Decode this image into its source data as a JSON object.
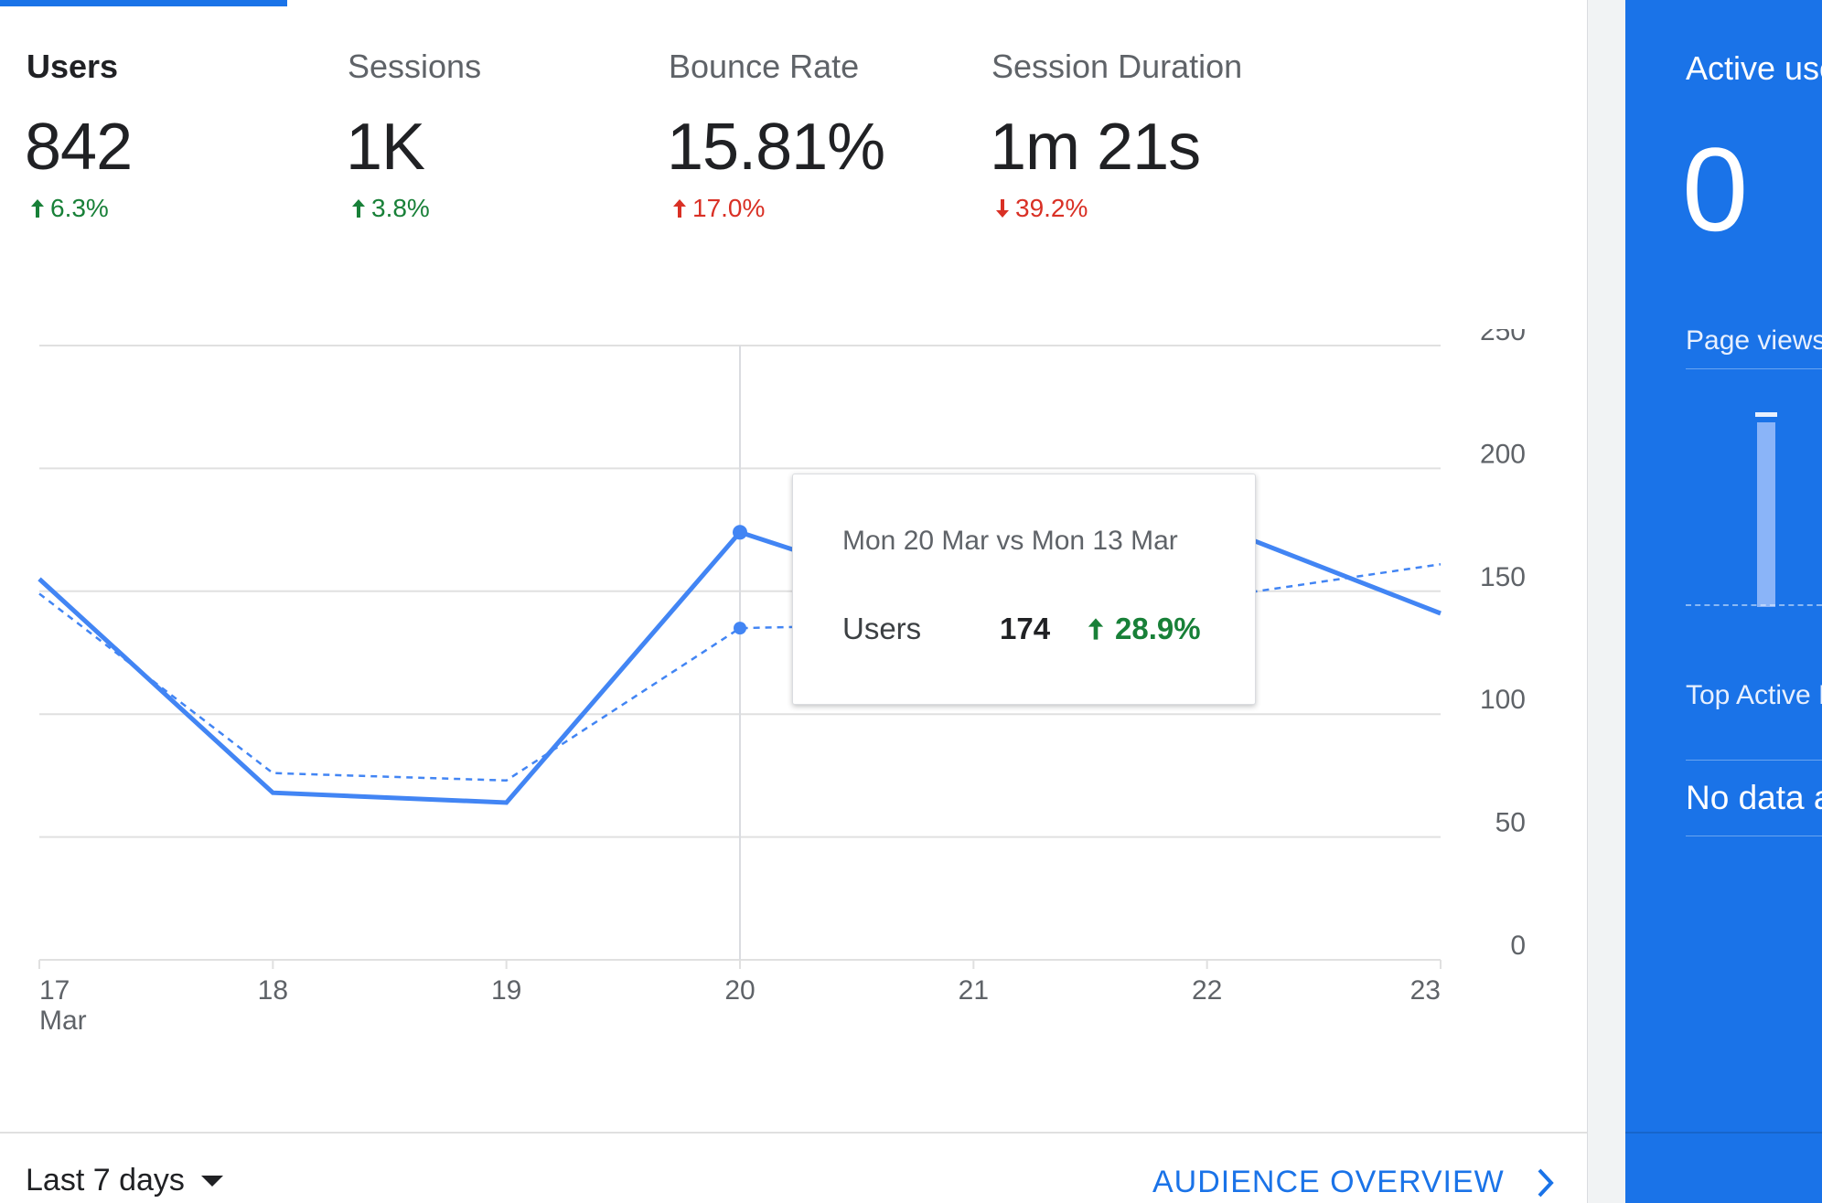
{
  "metrics": [
    {
      "label": "Users",
      "value": "842",
      "change": "6.3%",
      "direction": "up",
      "status": "good"
    },
    {
      "label": "Sessions",
      "value": "1K",
      "change": "3.8%",
      "direction": "up",
      "status": "good"
    },
    {
      "label": "Bounce Rate",
      "value": "15.81%",
      "change": "17.0%",
      "direction": "up",
      "status": "bad"
    },
    {
      "label": "Session Duration",
      "value": "1m 21s",
      "change": "39.2%",
      "direction": "down",
      "status": "bad"
    }
  ],
  "tooltip": {
    "title": "Mon 20 Mar vs Mon 13 Mar",
    "metric": "Users",
    "value": "174",
    "change": "28.9%"
  },
  "chart_data": {
    "type": "line",
    "x": [
      "17",
      "18",
      "19",
      "20",
      "21",
      "22",
      "23"
    ],
    "x_sub_label": "Mar",
    "series": [
      {
        "values": [
          155,
          68,
          64,
          174,
          143,
          178,
          141
        ],
        "style": "solid"
      },
      {
        "values": [
          149,
          76,
          73,
          135,
          137,
          147,
          161
        ],
        "style": "dashed"
      }
    ],
    "yticks": [
      0,
      50,
      100,
      150,
      200,
      250
    ],
    "ylim": [
      0,
      250
    ],
    "highlight_index": 3,
    "colors": {
      "line": "#4285f4",
      "grid": "#e0e0e0",
      "axis_text": "#5f6368"
    }
  },
  "footer": {
    "date_range": "Last 7 days",
    "audience_link": "AUDIENCE OVERVIEW"
  },
  "realtime": {
    "title": "Active users right now",
    "count": "0",
    "page_views": "Page views per minute",
    "top_active": "Top Active Pages",
    "no_data": "No data available"
  },
  "colors": {
    "accent": "#1a73e8",
    "positive": "#188038",
    "negative": "#d93025"
  }
}
